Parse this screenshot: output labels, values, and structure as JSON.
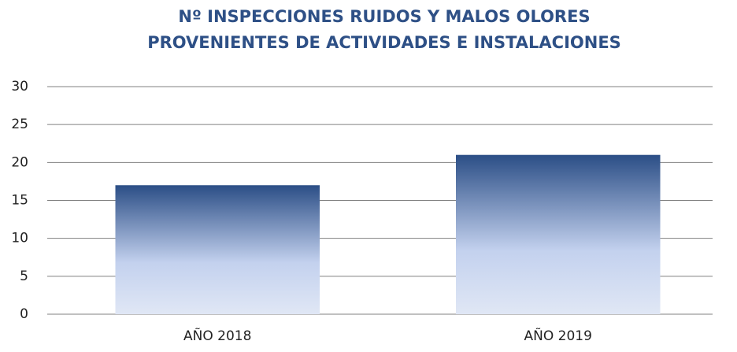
{
  "chart_data": {
    "type": "bar",
    "title": [
      "Nº INSPECCIONES RUIDOS Y MALOS OLORES",
      "PROVENIENTES DE ACTIVIDADES E INSTALACIONES"
    ],
    "categories": [
      "AÑO 2018",
      "AÑO 2019"
    ],
    "values": [
      17,
      21
    ],
    "gradient": [
      "#2b4e86",
      "#c3d1ee",
      "#e0e7f5"
    ],
    "ylim": [
      0,
      30
    ],
    "yticks": [
      0,
      5,
      10,
      15,
      20,
      25,
      30
    ],
    "grid": true
  }
}
